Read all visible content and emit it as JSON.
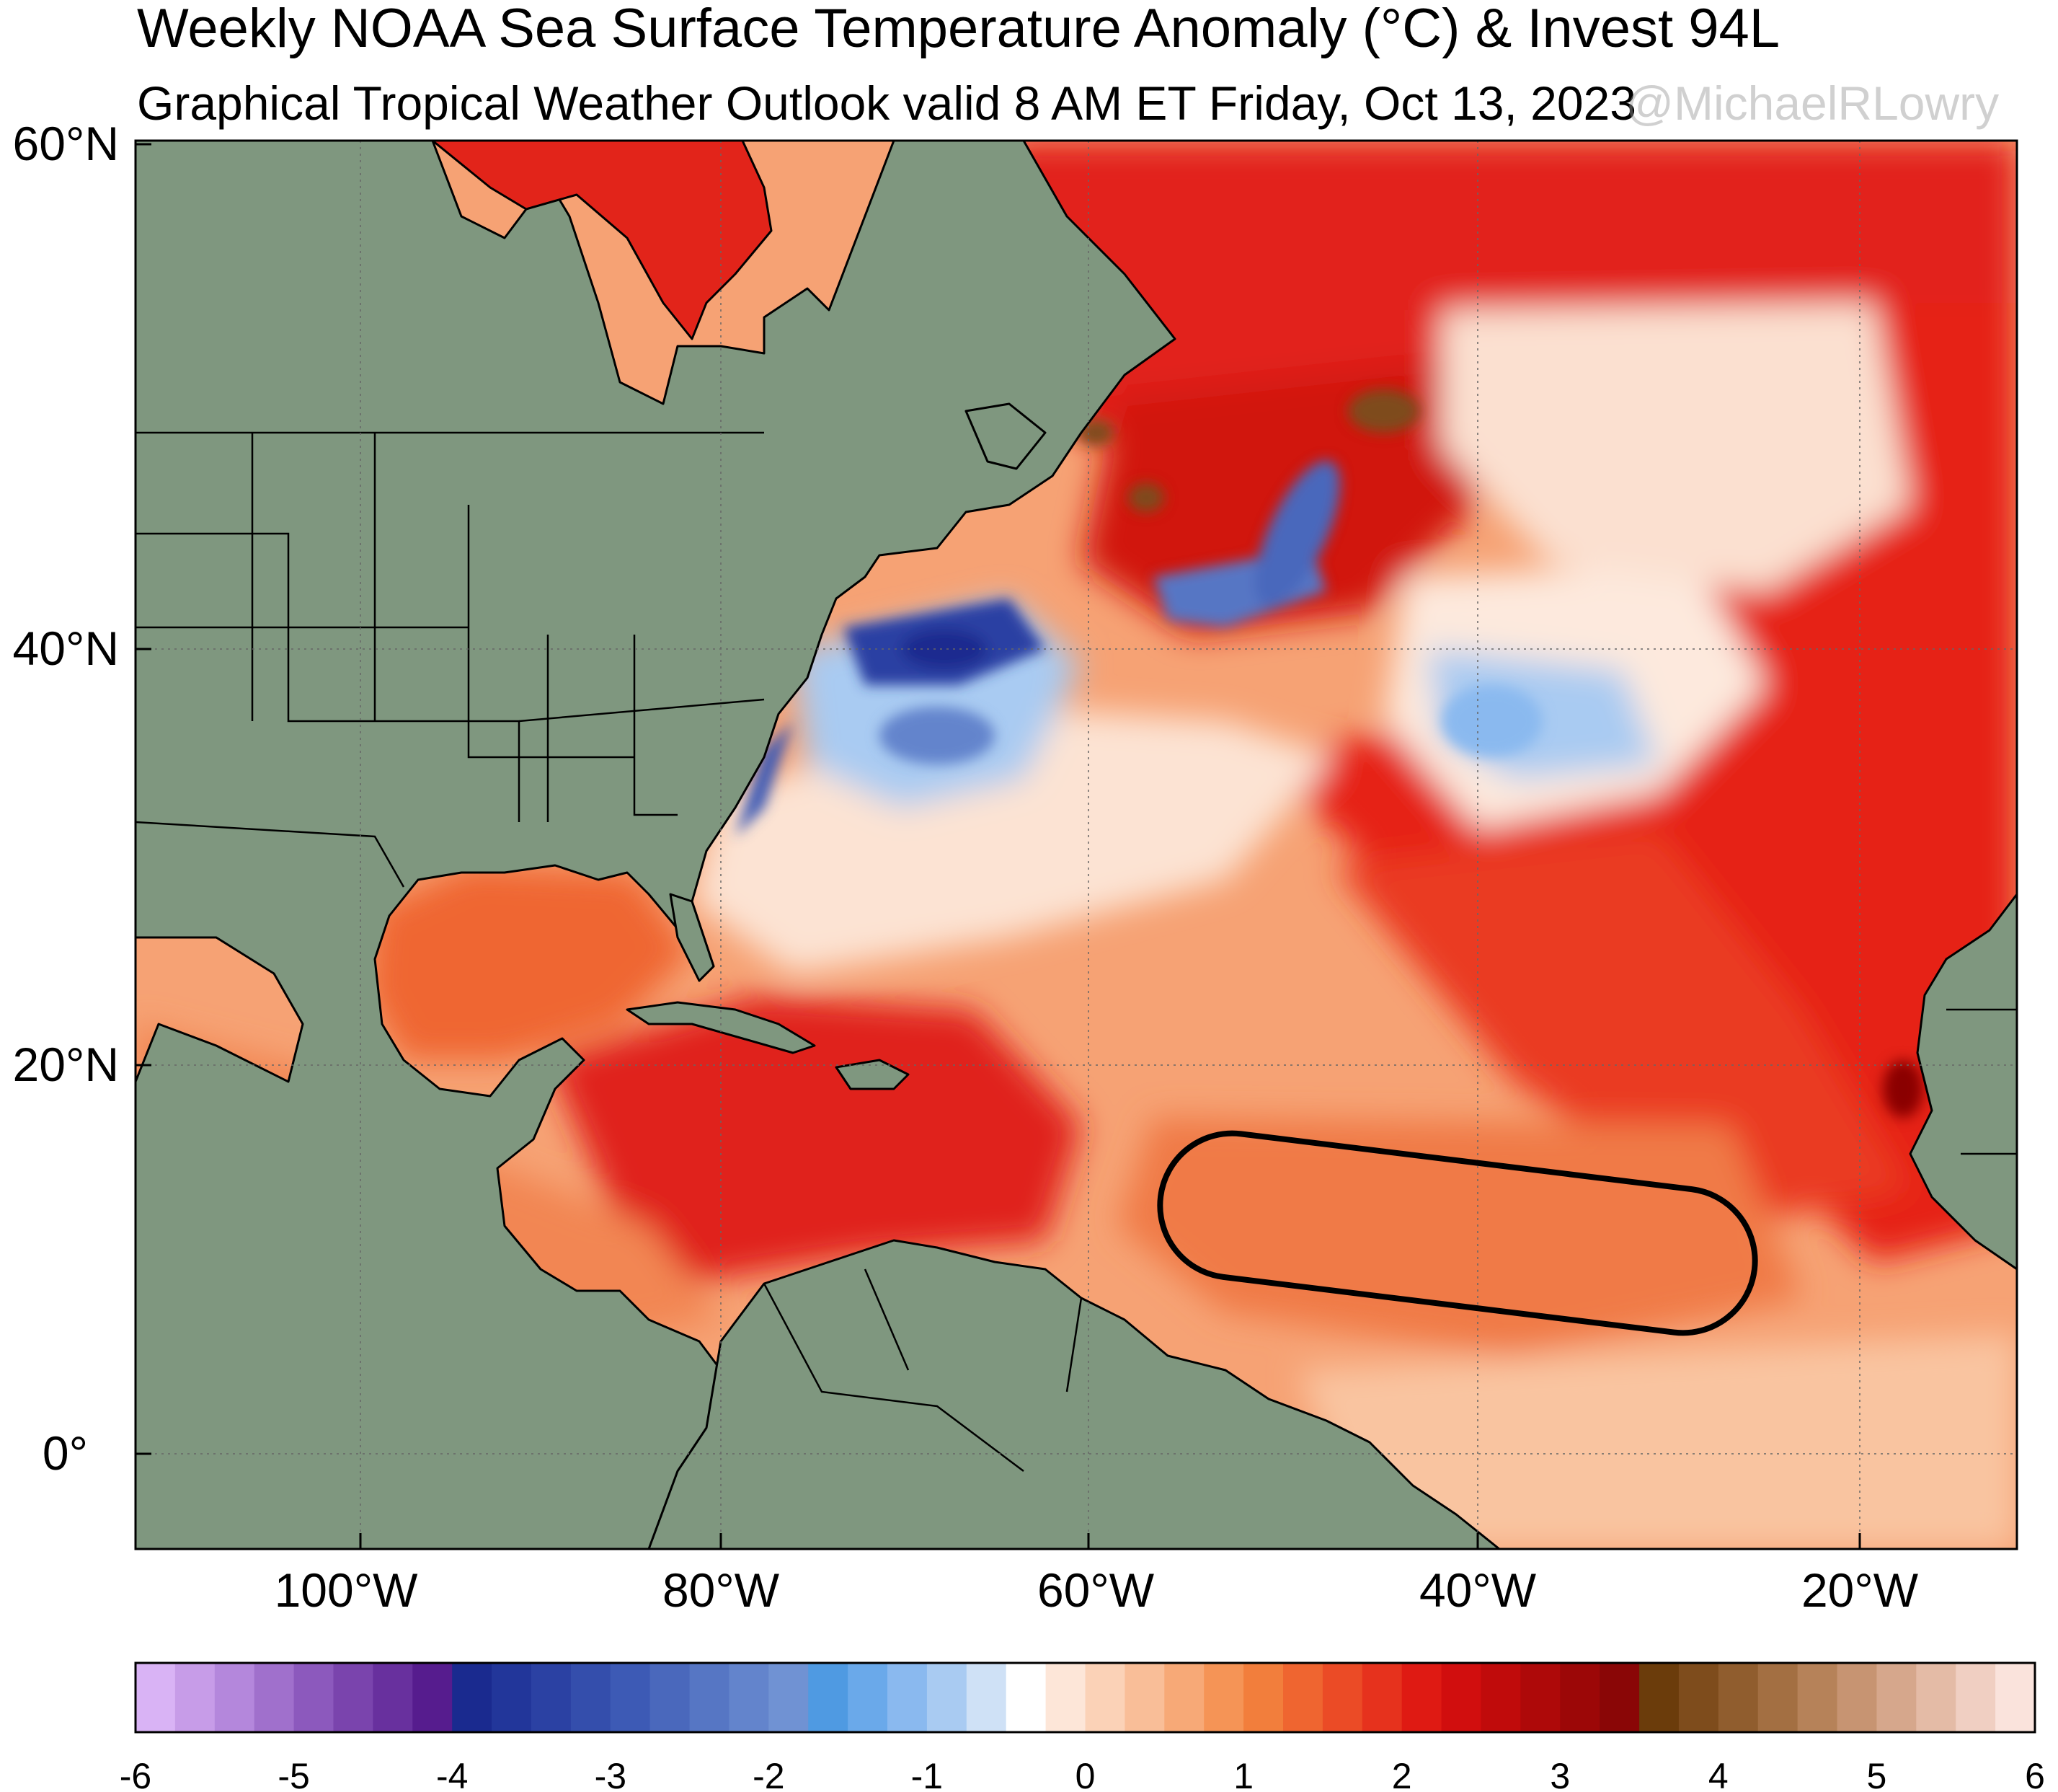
{
  "header": {
    "title": "Weekly NOAA Sea Surface Temperature Anomaly (°C) & Invest 94L",
    "subtitle": "Graphical Tropical Weather Outlook valid 8 AM ET Friday, Oct 13, 2023",
    "watermark": "@MichaelRLowry"
  },
  "map": {
    "lat_labels": [
      "60°N",
      "40°N",
      "20°N",
      "0°"
    ],
    "lon_labels": [
      "100°W",
      "80°W",
      "60°W",
      "40°W",
      "20°W"
    ],
    "land_color": "#7f977f",
    "outlook_area": "Invest 94L outline"
  },
  "colorbar": {
    "ticks": [
      "-6",
      "-5",
      "-4",
      "-3",
      "-2",
      "-1",
      "0",
      "1",
      "2",
      "3",
      "4",
      "5",
      "6"
    ],
    "colors": [
      "#d9b3f5",
      "#c79ce8",
      "#b487dc",
      "#a070cc",
      "#8c59bd",
      "#7a44ad",
      "#68309e",
      "#561c8e",
      "#1a2a8f",
      "#22369a",
      "#2b41a3",
      "#344eac",
      "#3d5ab5",
      "#4a68bc",
      "#5676c4",
      "#6384cc",
      "#7092d3",
      "#4f9ae2",
      "#6aa9ea",
      "#8ab9ef",
      "#a9cbf2",
      "#cfe1f6",
      "#ffffff",
      "#fde6d8",
      "#fbd2b7",
      "#f9be98",
      "#f7a977",
      "#f59456",
      "#f27e3c",
      "#ef6530",
      "#eb4b26",
      "#e6321d",
      "#df1a13",
      "#d10e0e",
      "#c00b0b",
      "#ae0909",
      "#9c0707",
      "#8a0606",
      "#6b3c0b",
      "#7e4c1c",
      "#905d2e",
      "#a36f42",
      "#b68259",
      "#c79472",
      "#d6a78c",
      "#e4bba6",
      "#f0cfc2",
      "#fae3dc"
    ]
  }
}
